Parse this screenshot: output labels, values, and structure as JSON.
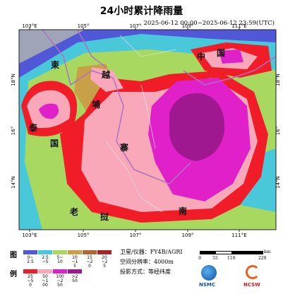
{
  "header": {
    "title": "24小时累计降雨量",
    "time_range": "2025-06-12 00:00~2025-06-12 23:59(UTC)"
  },
  "map": {
    "lon_labels": [
      "103°E",
      "105°",
      "107°",
      "109°",
      "111°E"
    ],
    "lat_labels": [
      "18°N",
      "16°",
      "14°N"
    ],
    "place_labels": [
      "東",
      "越",
      "埔",
      "寨",
      "泰",
      "国",
      "老",
      "挝",
      "南",
      "中",
      "国"
    ]
  },
  "legend": {
    "title": [
      "图",
      "例"
    ],
    "items": [
      {
        "label": "0~2.5",
        "color": "#5058d8"
      },
      {
        "label": "2.5~5",
        "color": "#48c8d8"
      },
      {
        "label": "5~10",
        "color": "#a8d860"
      },
      {
        "label": "10~15",
        "color": "#c8a048"
      },
      {
        "label": "15~20",
        "color": "#b06838"
      },
      {
        "label": "20~25",
        "color": "#a02828"
      },
      {
        "label": "25~50",
        "color": "#f01c28"
      },
      {
        "label": "50~100",
        "color": "#f8a8b8"
      },
      {
        "label": "100~250",
        "color": "#e020c8"
      },
      {
        "label": ">250",
        "color": "#a01890"
      }
    ]
  },
  "info": [
    "卫星/仪器：FY4B/AGRI",
    "空间分辨率：4000m",
    "投影方式：等经纬度"
  ],
  "scale": {
    "labels": [
      "0",
      "55",
      "110",
      "220"
    ],
    "unit": "km"
  },
  "logos": [
    "NSMC",
    "NCSW"
  ]
}
